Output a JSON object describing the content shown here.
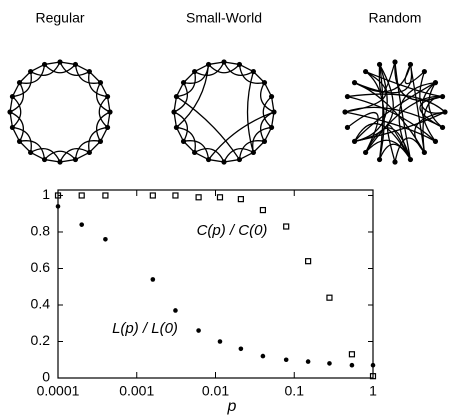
{
  "diagrams": {
    "labels": [
      "Regular",
      "Small-World",
      "Random"
    ]
  },
  "chart_data": {
    "type": "scatter",
    "xscale": "log",
    "x": [
      0.0001,
      0.0002,
      0.0004,
      0.0016,
      0.0031,
      0.0061,
      0.0114,
      0.021,
      0.04,
      0.079,
      0.15,
      0.28,
      0.54,
      1
    ],
    "series": [
      {
        "name": "C(p) / C(0)",
        "marker": "square",
        "color": "#000000",
        "values": [
          1,
          1,
          1,
          1,
          1,
          0.99,
          0.99,
          0.98,
          0.92,
          0.83,
          0.64,
          0.44,
          0.13,
          0.01
        ]
      },
      {
        "name": "L(p) / L(0)",
        "marker": "dot",
        "color": "#000000",
        "values": [
          0.94,
          0.84,
          0.76,
          0.54,
          0.37,
          0.26,
          0.2,
          0.16,
          0.12,
          0.1,
          0.09,
          0.08,
          0.07,
          0.07
        ]
      }
    ],
    "xlabel": "p",
    "xlim": [
      0.0001,
      1
    ],
    "xticks": [
      0.0001,
      0.001,
      0.01,
      0.1,
      1
    ],
    "ylim": [
      0,
      1.03
    ],
    "yticks": [
      0,
      0.2,
      0.4,
      0.6,
      0.8,
      1
    ]
  }
}
